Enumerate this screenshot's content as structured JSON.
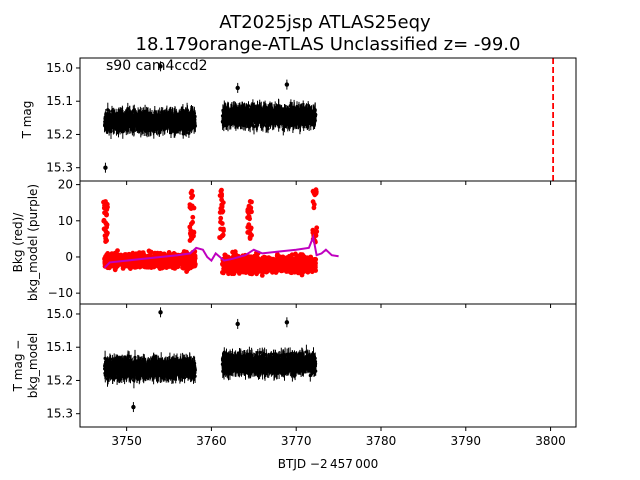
{
  "title_line1": "AT2025jsp  ATLAS25eqy",
  "title_line2": "18.179orange-ATLAS Unclassified z= -99.0",
  "annotation": "s90 cam4ccd2",
  "xlabel": "BTJD −2 457 000",
  "colors": {
    "data": "#000000",
    "bkg": "#ff0000",
    "bkg_model": "#bf00bf",
    "marker": "#ff0000"
  },
  "chart_data": [
    {
      "type": "scatter",
      "panel": "top",
      "ylabel": "T mag",
      "ylim": [
        15.34,
        14.97
      ],
      "xlim": [
        3744.5,
        3803.0
      ],
      "y_inverted": true,
      "yticks": [
        "15.0",
        "15.1",
        "15.2",
        "15.3"
      ],
      "yticks_values": [
        15.0,
        15.1,
        15.2,
        15.3
      ],
      "vline_x": 3800.3,
      "segments": [
        {
          "x0": 3747.4,
          "x1": 3758.1,
          "center": 15.16,
          "spread": 0.045
        },
        {
          "x0": 3761.3,
          "x1": 3772.3,
          "center": 15.145,
          "spread": 0.045
        }
      ],
      "outliers": [
        {
          "x": 3754.0,
          "y": 14.995
        },
        {
          "x": 3763.1,
          "y": 15.06
        },
        {
          "x": 3768.9,
          "y": 15.05
        },
        {
          "x": 3747.5,
          "y": 15.3
        }
      ]
    },
    {
      "type": "scatter",
      "panel": "middle",
      "ylabel": "Bkg (red)/\nbkg_model (purple)",
      "ylim": [
        -13,
        21
      ],
      "yticks": [
        "−10",
        "0",
        "10",
        "20"
      ],
      "yticks_values": [
        -10,
        0,
        10,
        20
      ],
      "segments": [
        {
          "x0": 3747.4,
          "x1": 3758.1,
          "center": -1.0,
          "spread": 3.5
        },
        {
          "x0": 3761.3,
          "x1": 3772.3,
          "center": -2.0,
          "spread": 4.0
        }
      ],
      "spikes": [
        {
          "x": 3747.5,
          "y": 17
        },
        {
          "x": 3757.7,
          "y": 19
        },
        {
          "x": 3761.2,
          "y": 19
        },
        {
          "x": 3764.5,
          "y": 16
        },
        {
          "x": 3772.2,
          "y": 19
        }
      ],
      "model": [
        [
          3747.4,
          -3.0
        ],
        [
          3748.0,
          -1.5
        ],
        [
          3750.0,
          -1.0
        ],
        [
          3752.0,
          -0.5
        ],
        [
          3754.0,
          0.0
        ],
        [
          3756.0,
          0.5
        ],
        [
          3757.5,
          1.0
        ],
        [
          3758.2,
          2.5
        ],
        [
          3759.0,
          2.0
        ],
        [
          3759.5,
          0.0
        ],
        [
          3760.0,
          -1.0
        ],
        [
          3760.5,
          1.0
        ],
        [
          3761.0,
          0.0
        ],
        [
          3761.5,
          -1.0
        ],
        [
          3762.5,
          -0.5
        ],
        [
          3764.0,
          0.5
        ],
        [
          3765.0,
          2.0
        ],
        [
          3766.0,
          1.0
        ],
        [
          3768.0,
          1.5
        ],
        [
          3770.0,
          2.0
        ],
        [
          3771.5,
          2.5
        ],
        [
          3772.0,
          5.5
        ],
        [
          3772.4,
          0.5
        ],
        [
          3773.0,
          1.0
        ],
        [
          3773.5,
          2.0
        ],
        [
          3774.2,
          0.5
        ],
        [
          3775.0,
          0.2
        ]
      ]
    },
    {
      "type": "scatter",
      "panel": "bottom",
      "ylabel": "T mag −\nbkg_model",
      "ylim": [
        15.34,
        14.97
      ],
      "y_inverted": true,
      "yticks": [
        "15.0",
        "15.1",
        "15.2",
        "15.3"
      ],
      "yticks_values": [
        15.0,
        15.1,
        15.2,
        15.3
      ],
      "xticks": [
        "3750",
        "3760",
        "3770",
        "3780",
        "3790",
        "3800"
      ],
      "xticks_values": [
        3750,
        3760,
        3770,
        3780,
        3790,
        3800
      ],
      "segments": [
        {
          "x0": 3747.4,
          "x1": 3758.1,
          "center": 15.165,
          "spread": 0.045
        },
        {
          "x0": 3761.3,
          "x1": 3772.3,
          "center": 15.15,
          "spread": 0.045
        }
      ],
      "outliers": [
        {
          "x": 3754.0,
          "y": 14.995
        },
        {
          "x": 3763.1,
          "y": 15.03
        },
        {
          "x": 3768.9,
          "y": 15.025
        },
        {
          "x": 3750.8,
          "y": 15.28
        }
      ]
    }
  ]
}
